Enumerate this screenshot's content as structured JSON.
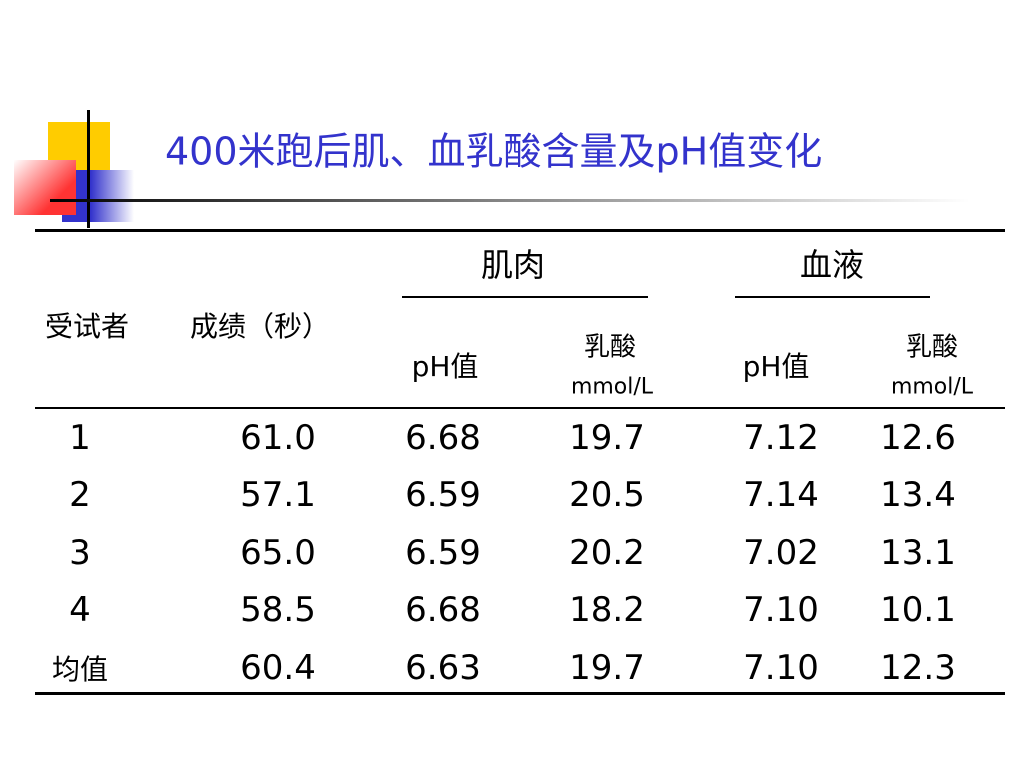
{
  "title": "400米跑后肌、血乳酸含量及pH值变化",
  "table": {
    "header": {
      "subject": "受试者",
      "score": "成绩（秒）",
      "muscle": "肌肉",
      "blood": "血液",
      "muscle_ph": "pH值",
      "muscle_lactate": "乳酸",
      "muscle_lactate_unit": "mmol/L",
      "blood_ph": "pH值",
      "blood_lactate": "乳酸",
      "blood_lactate_unit": "mmol/L"
    },
    "rows": [
      [
        "1",
        "61.0",
        "6.68",
        "19.7",
        "7.12",
        "12.6"
      ],
      [
        "2",
        "57.1",
        "6.59",
        "20.5",
        "7.14",
        "13.4"
      ],
      [
        "3",
        "65.0",
        "6.59",
        "20.2",
        "7.02",
        "13.1"
      ],
      [
        "4",
        "58.5",
        "6.68",
        "18.2",
        "7.10",
        "10.1"
      ],
      [
        "均值",
        "60.4",
        "6.63",
        "19.7",
        "7.10",
        "12.3"
      ]
    ]
  }
}
